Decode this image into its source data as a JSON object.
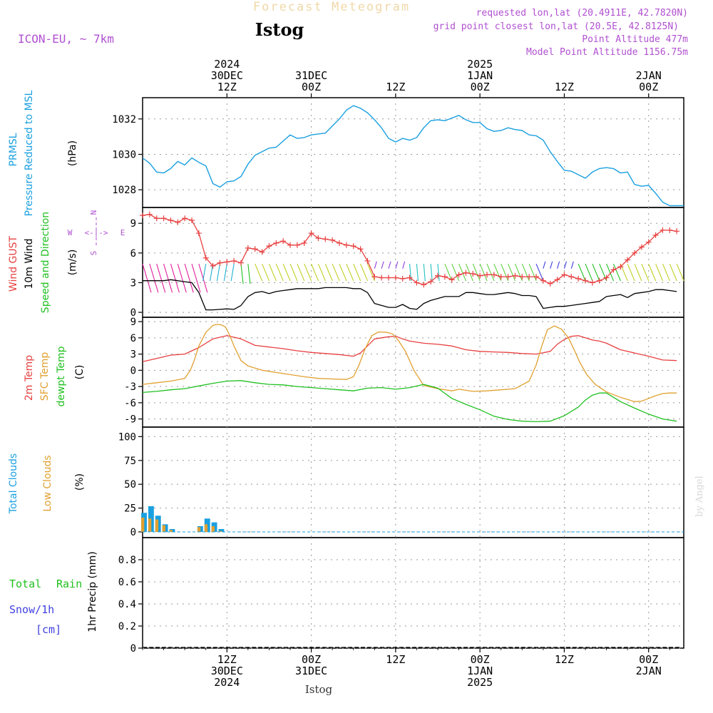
{
  "header": {
    "title": "Forecast Meteogram",
    "location": "Istog",
    "model": "ICON-EU, ~ 7km",
    "requested": "requested lon,lat (20.4911E, 42.7820N)",
    "grid_point": "grid point closest lon,lat (20.5E, 42.8125N)",
    "point_altitude": "Point Altitude 477m",
    "model_altitude": "Model Point Altitude 1156.75m",
    "footer_location": "Istog",
    "credit": "by Angel"
  },
  "colors": {
    "pressure": "#1aa0e0",
    "gust": "#e84040",
    "wind10": "#000000",
    "temp2m": "#e84040",
    "sfc": "#e0a030",
    "dew": "#20c020",
    "total_clouds": "#1aa0e0",
    "low_clouds": "#e0a030",
    "rain": "#20c020",
    "snow": "#4040e0",
    "title": "#f0d8a8",
    "info": "#b050d0"
  },
  "time_axis": {
    "top_labels": [
      {
        "t": 12,
        "lines": [
          "2024",
          "30DEC",
          "12Z"
        ]
      },
      {
        "t": 24,
        "lines": [
          "31DEC",
          "00Z"
        ]
      },
      {
        "t": 36,
        "lines": [
          "12Z"
        ]
      },
      {
        "t": 48,
        "lines": [
          "2025",
          "1JAN",
          "00Z"
        ]
      },
      {
        "t": 60,
        "lines": [
          "12Z"
        ]
      },
      {
        "t": 72,
        "lines": [
          "2JAN",
          "00Z"
        ]
      }
    ],
    "bottom_labels": [
      {
        "t": 12,
        "lines": [
          "12Z",
          "30DEC",
          "2024"
        ]
      },
      {
        "t": 24,
        "lines": [
          "00Z",
          "31DEC"
        ]
      },
      {
        "t": 36,
        "lines": [
          "12Z"
        ]
      },
      {
        "t": 48,
        "lines": [
          "00Z",
          "1JAN",
          "2025"
        ]
      },
      {
        "t": 60,
        "lines": [
          "12Z"
        ]
      },
      {
        "t": 72,
        "lines": [
          "00Z",
          "2JAN"
        ]
      }
    ]
  },
  "panels": {
    "pressure": {
      "labels": [
        "PRMSL",
        "Pressure Reduced to MSL"
      ],
      "unit": "(hPa)",
      "ticks": [
        "1028",
        "1030",
        "1032"
      ]
    },
    "wind": {
      "labels": [
        "Wind GUST",
        "10m Wind",
        "Speed and Direction"
      ],
      "unit": "(m/s)",
      "ticks": [
        "0",
        "3",
        "6",
        "9"
      ],
      "compass": {
        "n": "N",
        "s": "S",
        "w": "W",
        "e": "E",
        "ns": "| ",
        "we": "<-|->"
      }
    },
    "temp": {
      "labels": [
        "2m Temp",
        "SFC Temp",
        "dewpt Temp"
      ],
      "unit": "(C)",
      "ticks": [
        "-9",
        "-6",
        "-3",
        "0",
        "3",
        "6",
        "9"
      ]
    },
    "clouds": {
      "labels": [
        "Total Clouds",
        "Low Clouds"
      ],
      "unit": "(%)",
      "ticks": [
        "0",
        "25",
        "50",
        "75",
        "100"
      ]
    },
    "precip": {
      "labels": [
        "Total",
        "Rain",
        "Snow/1h",
        "[cm]"
      ],
      "unit": "1hr Precip (mm)",
      "ticks": [
        "0",
        "0.2",
        "0.4",
        "0.6",
        "0.8"
      ]
    }
  },
  "chart_data": [
    {
      "type": "line",
      "id": "pressure",
      "ylim": [
        1027,
        1033.2
      ],
      "series": [
        {
          "name": "PRMSL",
          "x": [
            0,
            1,
            2,
            3,
            4,
            5,
            6,
            7,
            8,
            9,
            10,
            11,
            12,
            13,
            14,
            15,
            16,
            17,
            18,
            19,
            20,
            21,
            22,
            23,
            24,
            25,
            26,
            27,
            28,
            29,
            30,
            31,
            32,
            33,
            34,
            35,
            36,
            37,
            38,
            39,
            40,
            41,
            42,
            43,
            44,
            45,
            46,
            47,
            48,
            49,
            50,
            51,
            52,
            53,
            54,
            55,
            56,
            57,
            58,
            59,
            60,
            61,
            62,
            63,
            64,
            65,
            66,
            67,
            68,
            69,
            70,
            71,
            72,
            73,
            74,
            75,
            76,
            77
          ],
          "values": [
            1029.8,
            1029.5,
            1029.0,
            1028.95,
            1029.2,
            1029.6,
            1029.4,
            1029.8,
            1029.55,
            1029.35,
            1028.35,
            1028.15,
            1028.45,
            1028.5,
            1028.75,
            1029.45,
            1029.95,
            1030.15,
            1030.35,
            1030.4,
            1030.75,
            1031.1,
            1030.9,
            1030.95,
            1031.1,
            1031.15,
            1031.2,
            1031.6,
            1032.0,
            1032.5,
            1032.75,
            1032.6,
            1032.35,
            1031.95,
            1031.5,
            1030.9,
            1030.7,
            1030.9,
            1030.8,
            1030.95,
            1031.5,
            1031.9,
            1031.95,
            1031.9,
            1032.05,
            1032.2,
            1031.95,
            1031.8,
            1031.8,
            1031.45,
            1031.3,
            1031.35,
            1031.5,
            1031.4,
            1031.35,
            1031.1,
            1031.05,
            1030.8,
            1030.15,
            1029.6,
            1029.1,
            1029.05,
            1028.85,
            1028.65,
            1029.0,
            1029.2,
            1029.25,
            1029.2,
            1028.95,
            1029.0,
            1028.3,
            1028.2,
            1028.25,
            1027.8,
            1027.3,
            1027.1,
            1027.1,
            1027.1
          ]
        }
      ]
    },
    {
      "type": "line",
      "id": "wind",
      "ylim": [
        -0.5,
        10.6
      ],
      "series": [
        {
          "name": "Wind GUST",
          "x": [
            0,
            1,
            2,
            3,
            4,
            5,
            6,
            7,
            8,
            9,
            10,
            11,
            12,
            13,
            14,
            15,
            16,
            17,
            18,
            19,
            20,
            21,
            22,
            23,
            24,
            25,
            26,
            27,
            28,
            29,
            30,
            31,
            32,
            33,
            34,
            35,
            36,
            37,
            38,
            39,
            40,
            41,
            42,
            43,
            44,
            45,
            46,
            47,
            48,
            49,
            50,
            51,
            52,
            53,
            54,
            55,
            56,
            57,
            58,
            59,
            60,
            61,
            62,
            63,
            64,
            65,
            66,
            67,
            68,
            69,
            70,
            71,
            72,
            73,
            74,
            75,
            76
          ],
          "values": [
            9.8,
            9.9,
            9.5,
            9.5,
            9.3,
            9.1,
            9.5,
            9.3,
            8.0,
            5.5,
            4.7,
            5.0,
            5.1,
            5.2,
            5.0,
            6.5,
            6.4,
            6.1,
            6.7,
            7.0,
            7.2,
            6.8,
            6.8,
            7.0,
            8.0,
            7.5,
            7.4,
            7.3,
            7.0,
            6.8,
            6.7,
            6.4,
            5.2,
            3.6,
            3.5,
            3.5,
            3.5,
            3.4,
            3.5,
            3.0,
            2.8,
            3.1,
            3.7,
            3.6,
            3.3,
            3.8,
            4.0,
            3.9,
            3.7,
            3.8,
            3.8,
            3.6,
            3.6,
            3.7,
            3.6,
            3.6,
            3.6,
            3.2,
            2.9,
            3.3,
            3.8,
            3.6,
            3.4,
            3.2,
            3.0,
            3.2,
            3.5,
            4.3,
            4.6,
            5.3,
            6.0,
            6.6,
            7.1,
            7.8,
            8.3,
            8.3,
            8.2
          ]
        },
        {
          "name": "10m Wind",
          "x": [
            0,
            1,
            2,
            3,
            4,
            5,
            6,
            7,
            8,
            9,
            10,
            11,
            12,
            13,
            14,
            15,
            16,
            17,
            18,
            19,
            20,
            21,
            22,
            23,
            24,
            25,
            26,
            27,
            28,
            29,
            30,
            31,
            32,
            33,
            34,
            35,
            36,
            37,
            38,
            39,
            40,
            41,
            42,
            43,
            44,
            45,
            46,
            47,
            48,
            49,
            50,
            51,
            52,
            53,
            54,
            55,
            56,
            57,
            58,
            59,
            60,
            61,
            62,
            63,
            64,
            65,
            66,
            67,
            68,
            69,
            70,
            71,
            72,
            73,
            74,
            75,
            76
          ],
          "values": [
            3.2,
            3.2,
            3.2,
            3.2,
            3.3,
            3.2,
            3.1,
            3.0,
            2.0,
            0.25,
            0.25,
            0.3,
            0.35,
            0.3,
            0.7,
            1.6,
            2.0,
            2.1,
            1.9,
            2.1,
            2.2,
            2.3,
            2.4,
            2.4,
            2.4,
            2.4,
            2.5,
            2.5,
            2.5,
            2.5,
            2.4,
            2.4,
            2.0,
            0.9,
            0.7,
            0.5,
            0.5,
            0.8,
            0.4,
            0.3,
            0.9,
            1.2,
            1.4,
            1.6,
            1.6,
            1.6,
            2.0,
            2.0,
            1.9,
            1.8,
            1.8,
            1.9,
            2.0,
            1.9,
            1.7,
            1.7,
            1.6,
            0.4,
            0.5,
            0.6,
            0.6,
            0.7,
            0.8,
            0.9,
            1.0,
            1.1,
            1.6,
            1.7,
            1.8,
            1.5,
            1.9,
            2.0,
            2.1,
            2.3,
            2.3,
            2.2,
            2.1
          ]
        }
      ]
    },
    {
      "type": "line",
      "id": "temp",
      "ylim": [
        -10.5,
        9.8
      ],
      "series": [
        {
          "name": "2m Temp",
          "x": [
            0,
            2,
            4,
            6,
            8,
            10,
            12,
            14,
            16,
            18,
            20,
            22,
            24,
            26,
            28,
            30,
            31,
            32,
            33,
            34,
            35,
            36,
            37,
            38,
            40,
            42,
            44,
            46,
            48,
            50,
            52,
            54,
            56,
            58,
            59,
            60,
            61,
            62,
            63,
            64,
            65,
            66,
            67,
            68,
            70,
            72,
            74,
            76
          ],
          "values": [
            1.6,
            2.2,
            2.8,
            3.0,
            4.2,
            5.8,
            6.4,
            5.8,
            4.6,
            4.3,
            4.0,
            3.6,
            3.3,
            3.1,
            2.9,
            2.6,
            3.2,
            4.5,
            5.8,
            6.0,
            6.2,
            6.3,
            5.8,
            5.4,
            5.0,
            4.8,
            4.5,
            3.8,
            3.5,
            3.4,
            3.3,
            3.1,
            3.0,
            3.5,
            4.8,
            5.7,
            6.3,
            6.4,
            6.0,
            5.6,
            5.4,
            5.0,
            4.4,
            3.8,
            3.2,
            2.6,
            1.9,
            1.8
          ]
        },
        {
          "name": "SFC Temp",
          "x": [
            0,
            2,
            4,
            6,
            6.8,
            7.4,
            8,
            9,
            10,
            10.6,
            11.2,
            11.8,
            12.4,
            13,
            14,
            15,
            17,
            19,
            21,
            23,
            25,
            27,
            29,
            30,
            30.8,
            31.6,
            32.6,
            33.6,
            34.8,
            35.6,
            36.4,
            37.4,
            38.6,
            40,
            42,
            44,
            45,
            47,
            49,
            51,
            53,
            55,
            56,
            56.8,
            57.6,
            58.6,
            59.6,
            60.6,
            61.4,
            62.2,
            63.2,
            64.4,
            66,
            68,
            70,
            71,
            72,
            73,
            74,
            75,
            76
          ],
          "values": [
            -2.6,
            -2.3,
            -2.0,
            -1.5,
            0.0,
            2.0,
            4.5,
            7.0,
            8.3,
            8.5,
            8.4,
            8.0,
            6.5,
            4.5,
            1.8,
            0.8,
            0.0,
            -0.4,
            -0.8,
            -1.2,
            -1.5,
            -1.6,
            -1.7,
            -1.2,
            1.0,
            3.8,
            6.4,
            7.1,
            7.0,
            6.7,
            5.5,
            3.5,
            0.0,
            -2.8,
            -3.4,
            -3.8,
            -3.5,
            -3.9,
            -3.8,
            -3.6,
            -3.4,
            -2.0,
            1.0,
            4.5,
            7.5,
            8.2,
            7.6,
            6.0,
            3.8,
            1.5,
            -0.8,
            -2.6,
            -4.0,
            -5.0,
            -5.8,
            -5.7,
            -5.2,
            -4.7,
            -4.3,
            -4.2,
            -4.2
          ]
        },
        {
          "name": "dewpt Temp",
          "x": [
            0,
            2,
            4,
            6,
            8,
            10,
            12,
            14,
            16,
            18,
            20,
            22,
            24,
            26,
            28,
            30,
            32,
            34,
            36,
            38,
            40,
            42,
            44,
            46,
            48,
            50,
            52,
            54,
            56,
            58,
            60,
            62,
            63,
            64,
            65,
            66,
            68,
            70,
            72,
            74,
            76
          ],
          "values": [
            -4.1,
            -3.9,
            -3.6,
            -3.4,
            -2.9,
            -2.4,
            -2.0,
            -1.9,
            -2.3,
            -2.6,
            -2.7,
            -3.0,
            -3.2,
            -3.4,
            -3.6,
            -3.8,
            -3.3,
            -3.2,
            -3.5,
            -3.2,
            -2.6,
            -3.3,
            -5.2,
            -6.3,
            -7.3,
            -8.5,
            -9.1,
            -9.4,
            -9.5,
            -9.4,
            -8.4,
            -6.8,
            -5.5,
            -4.6,
            -4.2,
            -4.2,
            -5.8,
            -7.0,
            -8.1,
            -9.0,
            -9.4
          ]
        }
      ]
    },
    {
      "type": "bar",
      "id": "clouds",
      "ylim": [
        -6,
        110
      ],
      "series": [
        {
          "name": "Total Clouds",
          "x": [
            0,
            1,
            2,
            3,
            4,
            8,
            9,
            10,
            11,
            12
          ],
          "values": [
            20,
            27,
            17,
            8,
            3,
            6,
            14,
            10,
            3,
            0
          ]
        },
        {
          "name": "Low Clouds",
          "x": [
            0,
            1,
            2,
            3,
            4,
            8,
            9,
            10,
            11
          ],
          "values": [
            15,
            14,
            13,
            7,
            2,
            5,
            8,
            6,
            1
          ]
        }
      ]
    },
    {
      "type": "line",
      "id": "precip",
      "ylim": [
        0,
        1.0
      ],
      "series": [
        {
          "name": "Total Rain",
          "x": [
            0,
            76.5
          ],
          "values": [
            0,
            0
          ]
        }
      ]
    }
  ]
}
